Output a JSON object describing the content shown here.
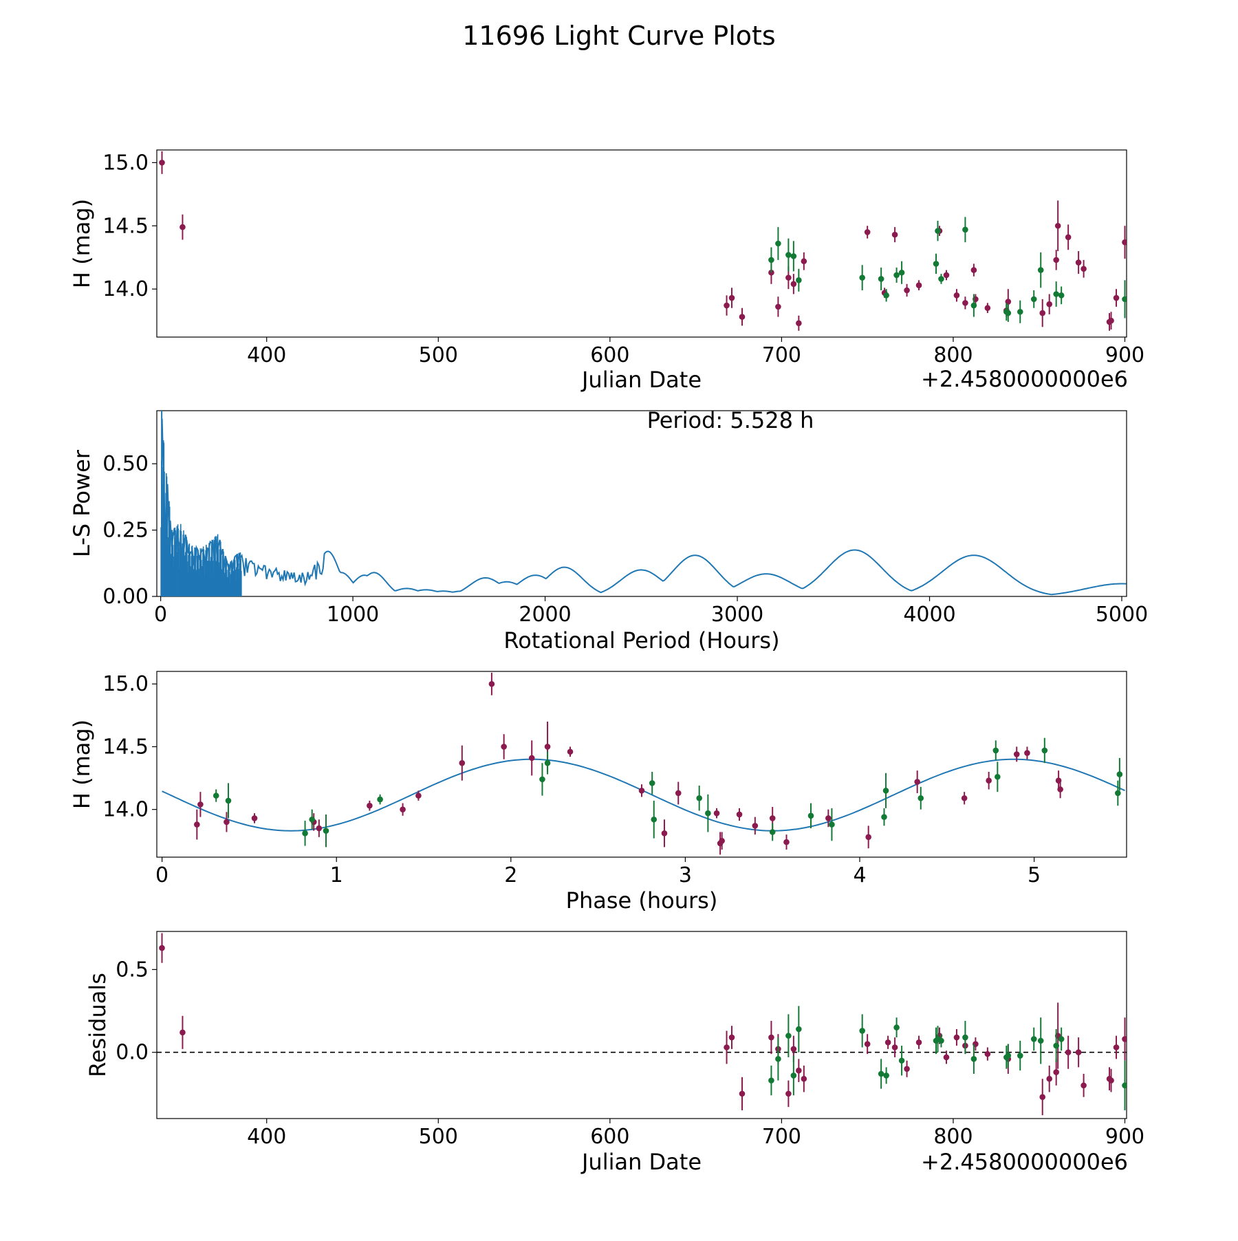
{
  "figure": {
    "title": "11696 Light Curve Plots"
  },
  "colors": {
    "red": "#8b1a4f",
    "green": "#137a35",
    "blue": "#1f77b4",
    "black": "#000000"
  },
  "chart_data": [
    {
      "id": "jd",
      "type": "scatter",
      "xlabel": "Julian Date",
      "ylabel": "H (mag)",
      "offset_text": "+2.4580000000e6",
      "xlim": [
        336,
        901
      ],
      "ylim": [
        13.62,
        15.1
      ],
      "xticks": [
        400,
        500,
        600,
        700,
        800,
        900
      ],
      "yticks": [
        14.0,
        14.5,
        15.0
      ],
      "ytick_labels": [
        "14.0",
        "14.5",
        "15.0"
      ],
      "series": [
        {
          "name": "red",
          "points": [
            [
              339,
              15.0,
              0.09
            ],
            [
              351,
              14.49,
              0.1
            ],
            [
              668,
              13.87,
              0.08
            ],
            [
              671,
              13.93,
              0.08
            ],
            [
              677,
              13.78,
              0.07
            ],
            [
              694,
              14.13,
              0.09
            ],
            [
              698,
              13.86,
              0.08
            ],
            [
              704,
              14.09,
              0.09
            ],
            [
              707,
              14.04,
              0.08
            ],
            [
              710,
              13.73,
              0.06
            ],
            [
              713,
              14.22,
              0.07
            ],
            [
              750,
              14.45,
              0.05
            ],
            [
              766,
              14.43,
              0.06
            ],
            [
              760,
              13.97,
              0.04
            ],
            [
              773,
              13.99,
              0.05
            ],
            [
              780,
              14.03,
              0.04
            ],
            [
              792,
              14.46,
              0.04
            ],
            [
              796,
              14.11,
              0.04
            ],
            [
              802,
              13.95,
              0.05
            ],
            [
              807,
              13.89,
              0.05
            ],
            [
              812,
              14.15,
              0.05
            ],
            [
              813,
              13.92,
              0.04
            ],
            [
              820,
              13.85,
              0.04
            ],
            [
              831,
              13.83,
              0.05
            ],
            [
              832,
              13.9,
              0.1
            ],
            [
              852,
              13.81,
              0.11
            ],
            [
              856,
              13.88,
              0.08
            ],
            [
              860,
              14.23,
              0.08
            ],
            [
              861,
              14.5,
              0.2
            ],
            [
              867,
              14.41,
              0.1
            ],
            [
              873,
              14.21,
              0.09
            ],
            [
              876,
              14.16,
              0.07
            ],
            [
              891,
              13.74,
              0.07
            ],
            [
              892,
              13.75,
              0.07
            ],
            [
              895,
              13.93,
              0.07
            ],
            [
              900,
              14.37,
              0.13
            ]
          ]
        },
        {
          "name": "green",
          "points": [
            [
              694,
              14.23,
              0.1
            ],
            [
              698,
              14.36,
              0.13
            ],
            [
              704,
              14.27,
              0.13
            ],
            [
              707,
              14.26,
              0.12
            ],
            [
              710,
              14.07,
              0.09
            ],
            [
              747,
              14.09,
              0.1
            ],
            [
              758,
              14.08,
              0.09
            ],
            [
              761,
              13.95,
              0.05
            ],
            [
              767,
              14.11,
              0.06
            ],
            [
              770,
              14.13,
              0.09
            ],
            [
              790,
              14.2,
              0.08
            ],
            [
              791,
              14.46,
              0.08
            ],
            [
              793,
              14.08,
              0.04
            ],
            [
              807,
              14.47,
              0.1
            ],
            [
              812,
              13.87,
              0.09
            ],
            [
              831,
              13.82,
              0.07
            ],
            [
              832,
              13.81,
              0.07
            ],
            [
              839,
              13.82,
              0.09
            ],
            [
              847,
              13.92,
              0.07
            ],
            [
              851,
              14.15,
              0.14
            ],
            [
              860,
              13.96,
              0.1
            ],
            [
              863,
              13.95,
              0.07
            ],
            [
              900,
              13.92,
              0.15
            ]
          ]
        }
      ]
    },
    {
      "id": "ls",
      "type": "line",
      "xlabel": "Rotational Period (Hours)",
      "ylabel": "L-S Power",
      "annotation": "Period: 5.528 h",
      "xlim": [
        -20,
        5025
      ],
      "ylim": [
        0,
        0.7
      ],
      "xticks": [
        0,
        1000,
        2000,
        3000,
        4000,
        5000
      ],
      "yticks": [
        0.0,
        0.25,
        0.5
      ],
      "ytick_labels": [
        "0.00",
        "0.25",
        "0.50"
      ],
      "peaks": [
        [
          0,
          0.0
        ],
        [
          5.5,
          0.72
        ],
        [
          20,
          0.55
        ],
        [
          60,
          0.25
        ],
        [
          100,
          0.28
        ],
        [
          150,
          0.2
        ],
        [
          200,
          0.18
        ],
        [
          250,
          0.2
        ],
        [
          300,
          0.24
        ],
        [
          350,
          0.12
        ],
        [
          410,
          0.17
        ],
        [
          450,
          0.14
        ],
        [
          520,
          0.12
        ],
        [
          570,
          0.11
        ],
        [
          640,
          0.1
        ],
        [
          700,
          0.09
        ],
        [
          760,
          0.09
        ],
        [
          870,
          0.17
        ],
        [
          940,
          0.09
        ],
        [
          1060,
          0.08
        ],
        [
          1110,
          0.09
        ],
        [
          1200,
          0.02
        ],
        [
          1280,
          0.03
        ],
        [
          1380,
          0.025
        ],
        [
          1470,
          0.02
        ],
        [
          1570,
          0.02
        ],
        [
          1690,
          0.07
        ],
        [
          1800,
          0.055
        ],
        [
          1950,
          0.08
        ],
        [
          2100,
          0.11
        ],
        [
          2260,
          0.01
        ],
        [
          2500,
          0.1
        ],
        [
          2780,
          0.155
        ],
        [
          3150,
          0.085
        ],
        [
          3610,
          0.175
        ],
        [
          4230,
          0.155
        ],
        [
          5000,
          0.048
        ]
      ]
    },
    {
      "id": "phase",
      "type": "scatter",
      "xlabel": "Phase (hours)",
      "ylabel": "H (mag)",
      "xlim": [
        -0.03,
        5.53
      ],
      "ylim": [
        13.62,
        15.1
      ],
      "xticks": [
        0,
        1,
        2,
        3,
        4,
        5
      ],
      "yticks": [
        14.0,
        14.5,
        15.0
      ],
      "ytick_labels": [
        "14.0",
        "14.5",
        "15.0"
      ],
      "fit": {
        "mean": 14.115,
        "amplitude": 0.285,
        "period": 5.528,
        "peak_phase": 2.12
      },
      "series": [
        {
          "name": "red",
          "points": [
            [
              0.2,
              13.88,
              0.12
            ],
            [
              0.22,
              14.04,
              0.1
            ],
            [
              0.37,
              13.9,
              0.08
            ],
            [
              0.53,
              13.93,
              0.04
            ],
            [
              0.87,
              13.9,
              0.07
            ],
            [
              0.9,
              13.85,
              0.07
            ],
            [
              1.19,
              14.03,
              0.04
            ],
            [
              1.38,
              14.0,
              0.05
            ],
            [
              1.47,
              14.11,
              0.04
            ],
            [
              1.72,
              14.37,
              0.14
            ],
            [
              1.89,
              15.0,
              0.09
            ],
            [
              1.96,
              14.5,
              0.1
            ],
            [
              2.12,
              14.41,
              0.14
            ],
            [
              2.21,
              14.5,
              0.2
            ],
            [
              2.34,
              14.46,
              0.04
            ],
            [
              2.75,
              14.15,
              0.05
            ],
            [
              2.88,
              13.81,
              0.11
            ],
            [
              2.96,
              14.13,
              0.09
            ],
            [
              3.18,
              13.97,
              0.04
            ],
            [
              3.2,
              13.73,
              0.09
            ],
            [
              3.21,
              13.75,
              0.07
            ],
            [
              3.31,
              13.96,
              0.05
            ],
            [
              3.4,
              13.87,
              0.07
            ],
            [
              3.5,
              13.93,
              0.09
            ],
            [
              3.58,
              13.74,
              0.06
            ],
            [
              3.82,
              13.93,
              0.07
            ],
            [
              4.05,
              13.78,
              0.09
            ],
            [
              4.33,
              14.22,
              0.09
            ],
            [
              4.6,
              14.09,
              0.05
            ],
            [
              4.74,
              14.23,
              0.07
            ],
            [
              4.9,
              14.44,
              0.06
            ],
            [
              4.96,
              14.45,
              0.05
            ],
            [
              5.14,
              14.23,
              0.08
            ],
            [
              5.15,
              14.16,
              0.07
            ]
          ]
        },
        {
          "name": "green",
          "points": [
            [
              0.31,
              14.11,
              0.05
            ],
            [
              0.38,
              14.07,
              0.14
            ],
            [
              0.82,
              13.81,
              0.1
            ],
            [
              0.86,
              13.92,
              0.08
            ],
            [
              0.94,
              13.83,
              0.13
            ],
            [
              1.25,
              14.08,
              0.04
            ],
            [
              2.18,
              14.24,
              0.13
            ],
            [
              2.21,
              14.37,
              0.09
            ],
            [
              2.81,
              14.21,
              0.09
            ],
            [
              2.82,
              13.92,
              0.15
            ],
            [
              3.08,
              14.09,
              0.1
            ],
            [
              3.13,
              13.97,
              0.15
            ],
            [
              3.5,
              13.82,
              0.07
            ],
            [
              3.72,
              13.95,
              0.1
            ],
            [
              3.84,
              13.88,
              0.13
            ],
            [
              4.14,
              13.94,
              0.07
            ],
            [
              4.15,
              14.15,
              0.14
            ],
            [
              4.35,
              14.09,
              0.09
            ],
            [
              4.78,
              14.47,
              0.08
            ],
            [
              4.79,
              14.26,
              0.12
            ],
            [
              5.06,
              14.47,
              0.1
            ],
            [
              5.48,
              14.13,
              0.1
            ],
            [
              5.49,
              14.28,
              0.13
            ]
          ]
        }
      ]
    },
    {
      "id": "resid",
      "type": "scatter",
      "xlabel": "Julian Date",
      "ylabel": "Residuals",
      "offset_text": "+2.4580000000e6",
      "xlim": [
        336,
        901
      ],
      "ylim": [
        -0.4,
        0.73
      ],
      "xticks": [
        400,
        500,
        600,
        700,
        800,
        900
      ],
      "yticks": [
        0.0,
        0.5
      ],
      "ytick_labels": [
        "0.0",
        "0.5"
      ],
      "zero_line": 0,
      "series": [
        {
          "name": "red",
          "points": [
            [
              339,
              0.63,
              0.09
            ],
            [
              351,
              0.12,
              0.1
            ],
            [
              668,
              0.03,
              0.1
            ],
            [
              671,
              0.09,
              0.07
            ],
            [
              677,
              -0.25,
              0.1
            ],
            [
              694,
              0.09,
              0.1
            ],
            [
              698,
              0.02,
              0.09
            ],
            [
              704,
              -0.25,
              0.08
            ],
            [
              707,
              0.02,
              0.08
            ],
            [
              710,
              -0.11,
              0.07
            ],
            [
              713,
              -0.16,
              0.08
            ],
            [
              750,
              0.05,
              0.06
            ],
            [
              762,
              0.06,
              0.04
            ],
            [
              766,
              0.03,
              0.06
            ],
            [
              773,
              -0.1,
              0.05
            ],
            [
              780,
              0.06,
              0.04
            ],
            [
              792,
              0.1,
              0.05
            ],
            [
              796,
              -0.03,
              0.04
            ],
            [
              802,
              0.09,
              0.05
            ],
            [
              807,
              0.04,
              0.05
            ],
            [
              813,
              0.05,
              0.04
            ],
            [
              820,
              -0.01,
              0.04
            ],
            [
              832,
              -0.04,
              0.09
            ],
            [
              852,
              -0.27,
              0.11
            ],
            [
              856,
              -0.16,
              0.08
            ],
            [
              860,
              -0.12,
              0.08
            ],
            [
              861,
              0.1,
              0.2
            ],
            [
              867,
              0.0,
              0.1
            ],
            [
              873,
              0.0,
              0.09
            ],
            [
              876,
              -0.2,
              0.07
            ],
            [
              891,
              -0.16,
              0.07
            ],
            [
              892,
              -0.17,
              0.07
            ],
            [
              895,
              0.03,
              0.07
            ],
            [
              900,
              0.08,
              0.13
            ]
          ]
        },
        {
          "name": "green",
          "points": [
            [
              694,
              -0.17,
              0.09
            ],
            [
              698,
              -0.04,
              0.13
            ],
            [
              704,
              0.1,
              0.13
            ],
            [
              707,
              -0.14,
              0.12
            ],
            [
              710,
              0.14,
              0.14
            ],
            [
              747,
              0.13,
              0.1
            ],
            [
              758,
              -0.13,
              0.09
            ],
            [
              761,
              -0.14,
              0.05
            ],
            [
              767,
              0.15,
              0.06
            ],
            [
              770,
              -0.05,
              0.09
            ],
            [
              790,
              0.07,
              0.08
            ],
            [
              791,
              0.08,
              0.08
            ],
            [
              793,
              0.07,
              0.04
            ],
            [
              807,
              0.09,
              0.1
            ],
            [
              812,
              -0.04,
              0.09
            ],
            [
              831,
              -0.03,
              0.07
            ],
            [
              832,
              -0.02,
              0.07
            ],
            [
              839,
              -0.02,
              0.09
            ],
            [
              847,
              0.08,
              0.07
            ],
            [
              851,
              0.07,
              0.14
            ],
            [
              860,
              0.04,
              0.1
            ],
            [
              863,
              0.08,
              0.07
            ],
            [
              900,
              -0.2,
              0.15
            ]
          ]
        }
      ]
    }
  ]
}
